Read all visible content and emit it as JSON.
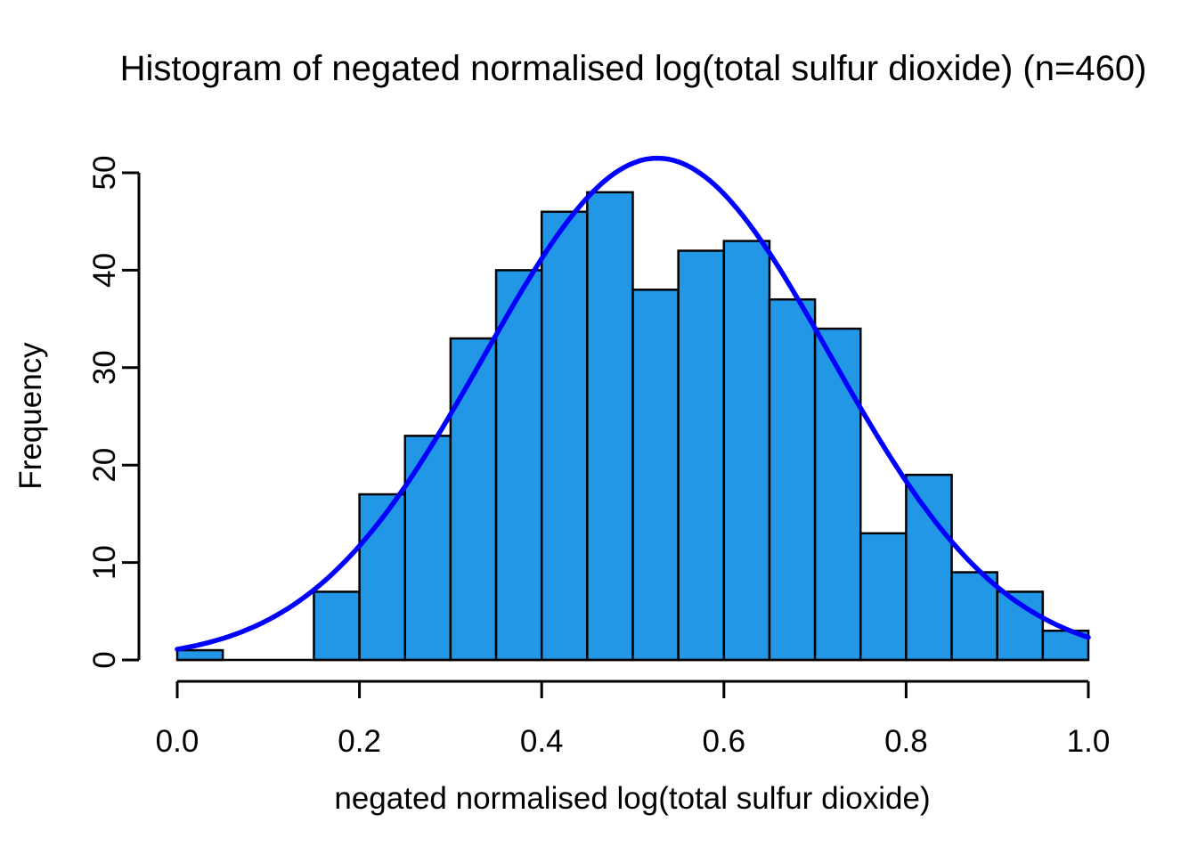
{
  "title": "Histogram of negated normalised log(total sulfur dioxide) (n=460)",
  "colors": {
    "background": "#ffffff",
    "bar_fill": "#2297E6",
    "bar_border": "#000000",
    "curve": "#0000FF",
    "axis": "#000000",
    "text": "#000000"
  },
  "chart_data": {
    "type": "bar",
    "subtype": "histogram",
    "title": "Histogram of negated normalised log(total sulfur dioxide) (n=460)",
    "xlabel": "negated normalised log(total sulfur dioxide)",
    "ylabel": "Frequency",
    "n": 460,
    "bin_width": 0.05,
    "bin_edges": [
      0.0,
      0.05,
      0.1,
      0.15,
      0.2,
      0.25,
      0.3,
      0.35,
      0.4,
      0.45,
      0.5,
      0.55,
      0.6,
      0.65,
      0.7,
      0.75,
      0.8,
      0.85,
      0.9,
      0.95,
      1.0
    ],
    "counts": [
      1,
      0,
      0,
      7,
      17,
      23,
      33,
      40,
      46,
      48,
      38,
      42,
      43,
      37,
      34,
      13,
      19,
      9,
      7,
      3
    ],
    "x_tick_values": [
      0.0,
      0.2,
      0.4,
      0.6,
      0.8,
      1.0
    ],
    "x_tick_labels": [
      "0.0",
      "0.2",
      "0.4",
      "0.6",
      "0.8",
      "1.0"
    ],
    "y_tick_values": [
      0,
      10,
      20,
      30,
      40,
      50
    ],
    "y_tick_labels": [
      "0",
      "10",
      "20",
      "30",
      "40",
      "50"
    ],
    "xlim": [
      0.0,
      1.0
    ],
    "ylim": [
      0,
      50
    ],
    "grid": false,
    "legend": null,
    "curve_overlay": {
      "type": "normal",
      "mean": 0.527,
      "sd": 0.19,
      "peak": 51.5,
      "color": "#0000FF",
      "x_range": [
        0.0,
        1.0
      ]
    },
    "bar_fill": "#2297E6",
    "bar_border": "#000000"
  }
}
